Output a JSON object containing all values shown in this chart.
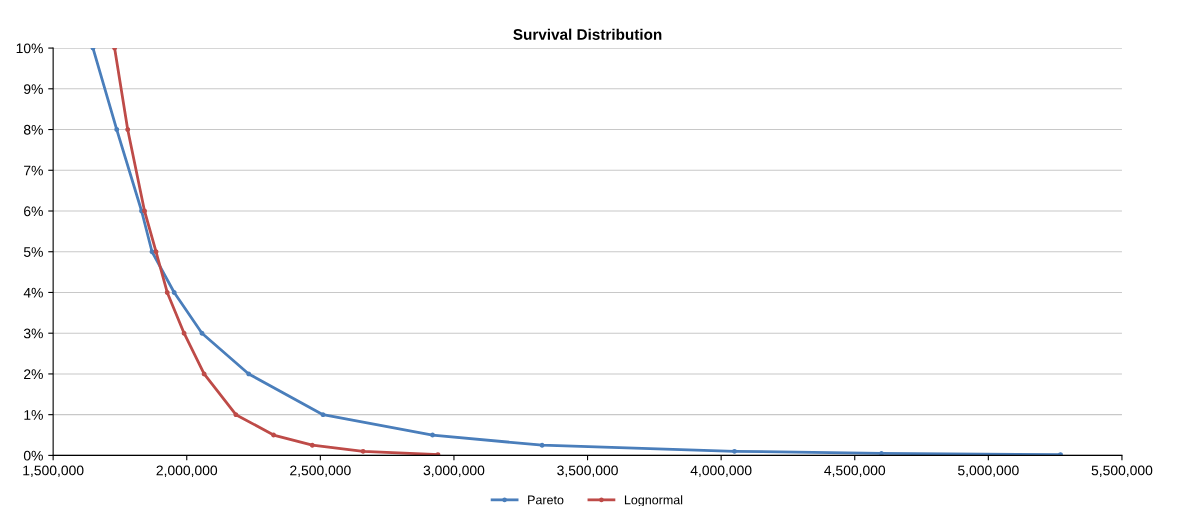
{
  "chart_data": {
    "type": "line",
    "title": "Survival Distribution",
    "xlim": [
      1500000,
      5500000
    ],
    "xticks": [
      {
        "value": 1500000,
        "label": "1,500,000"
      },
      {
        "value": 2000000,
        "label": "2,000,000"
      },
      {
        "value": 2500000,
        "label": "2,500,000"
      },
      {
        "value": 3000000,
        "label": "3,000,000"
      },
      {
        "value": 3500000,
        "label": "3,500,000"
      },
      {
        "value": 4000000,
        "label": "4,000,000"
      },
      {
        "value": 4500000,
        "label": "4,500,000"
      },
      {
        "value": 5000000,
        "label": "5,000,000"
      },
      {
        "value": 5500000,
        "label": "5,500,000"
      }
    ],
    "ylim": [
      0,
      10
    ],
    "yticks": [
      {
        "value": 0,
        "label": "0%"
      },
      {
        "value": 1,
        "label": "1%"
      },
      {
        "value": 2,
        "label": "2%"
      },
      {
        "value": 3,
        "label": "3%"
      },
      {
        "value": 4,
        "label": "4%"
      },
      {
        "value": 5,
        "label": "5%"
      },
      {
        "value": 6,
        "label": "6%"
      },
      {
        "value": 7,
        "label": "7%"
      },
      {
        "value": 8,
        "label": "8%"
      },
      {
        "value": 9,
        "label": "9%"
      },
      {
        "value": 10,
        "label": "10%"
      }
    ],
    "grid": "y",
    "legend": "bottom",
    "marker": "circle",
    "line_style": "solid",
    "series": [
      {
        "name": "Pareto",
        "color": "#4a7ebb",
        "x": [
          1649000,
          1738000,
          1831000,
          1870000,
          1953000,
          2057000,
          2232000,
          2510000,
          2920000,
          3330000,
          4050000,
          4600000,
          5270000
        ],
        "values": [
          10,
          8,
          6,
          5,
          4,
          3,
          2,
          1,
          0.5,
          0.25,
          0.1,
          0.05,
          0.02
        ]
      },
      {
        "name": "Lognormal",
        "color": "#be4b48",
        "x": [
          1730000,
          1779000,
          1842000,
          1885000,
          1927000,
          1990000,
          2065000,
          2184000,
          2325000,
          2470000,
          2660000,
          2940000
        ],
        "values": [
          10,
          8,
          6,
          5,
          4,
          3,
          2,
          1,
          0.5,
          0.25,
          0.1,
          0.02
        ]
      }
    ]
  }
}
